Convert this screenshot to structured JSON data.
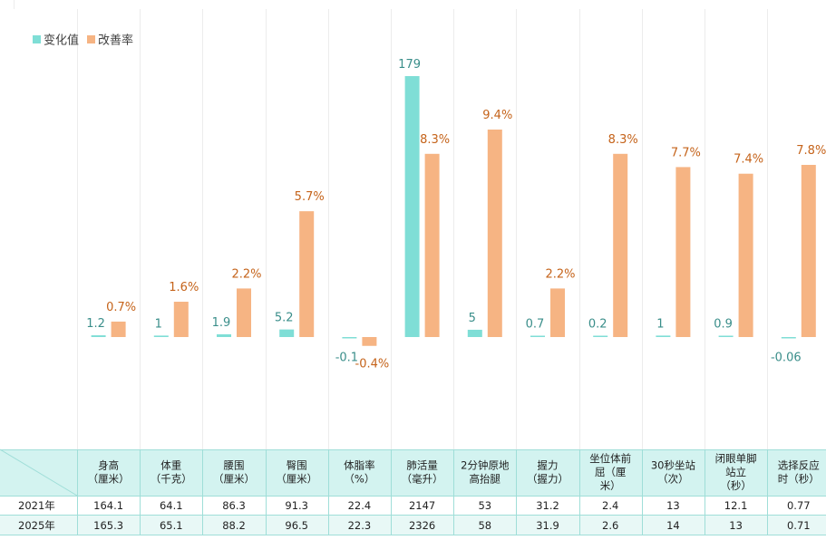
{
  "chart_data": {
    "type": "bar",
    "title": "",
    "xlabel": "",
    "ylabel": "",
    "legend": {
      "position": "top-left",
      "entries": [
        {
          "name": "变化值",
          "color": "#7fded6"
        },
        {
          "name": "改善率",
          "color": "#f6b483"
        }
      ]
    },
    "categories": [
      "身高（厘米）",
      "体重（千克）",
      "腰围（厘米）",
      "臀围（厘米）",
      "体脂率（%）",
      "肺活量（毫升）",
      "2分钟原地高抬腿",
      "握力（握力）",
      "坐位体前屈（厘米）",
      "30秒坐站（次）",
      "闭眼单脚站立（秒）",
      "选择反应时（秒）"
    ],
    "category_lines": [
      [
        "身高",
        "（厘米）"
      ],
      [
        "体重",
        "（千克）"
      ],
      [
        "腰围",
        "（厘米）"
      ],
      [
        "臀围",
        "（厘米）"
      ],
      [
        "体脂率",
        "（%）"
      ],
      [
        "肺活量",
        "（毫升）"
      ],
      [
        "2分钟原地",
        "高抬腿"
      ],
      [
        "握力",
        "（握力）"
      ],
      [
        "坐位体前",
        "屈（厘",
        "米）"
      ],
      [
        "30秒坐站",
        "（次）"
      ],
      [
        "闭眼单脚",
        "站立",
        "（秒）"
      ],
      [
        "选择反应",
        "时（秒）"
      ]
    ],
    "series": [
      {
        "name": "变化值",
        "color": "#7fded6",
        "label_color": "#3a8e8a",
        "values": [
          1.2,
          1,
          1.9,
          5.2,
          -0.1,
          179,
          5,
          0.7,
          0.2,
          1,
          0.9,
          -0.06
        ],
        "labels": [
          "1.2",
          "1",
          "1.9",
          "5.2",
          "-0.1",
          "179",
          "5",
          "0.7",
          "0.2",
          "1",
          "0.9",
          "-0.06"
        ]
      },
      {
        "name": "改善率",
        "color": "#f6b483",
        "label_color": "#c5631a",
        "values": [
          0.7,
          1.6,
          2.2,
          5.7,
          -0.4,
          8.3,
          9.4,
          2.2,
          8.3,
          7.7,
          7.4,
          7.8
        ],
        "labels": [
          "0.7%",
          "1.6%",
          "2.2%",
          "5.7%",
          "-0.4%",
          "8.3%",
          "9.4%",
          "2.2%",
          "8.3%",
          "7.7%",
          "7.4%",
          "7.8%"
        ]
      }
    ],
    "table": {
      "rows": [
        {
          "label": "2021年",
          "values": [
            "164.1",
            "64.1",
            "86.3",
            "91.3",
            "22.4",
            "2147",
            "53",
            "31.2",
            "2.4",
            "13",
            "12.1",
            "0.77"
          ]
        },
        {
          "label": "2025年",
          "values": [
            "165.3",
            "65.1",
            "88.2",
            "96.5",
            "22.3",
            "2326",
            "58",
            "31.9",
            "2.6",
            "14",
            "13",
            "0.71"
          ]
        }
      ]
    }
  }
}
